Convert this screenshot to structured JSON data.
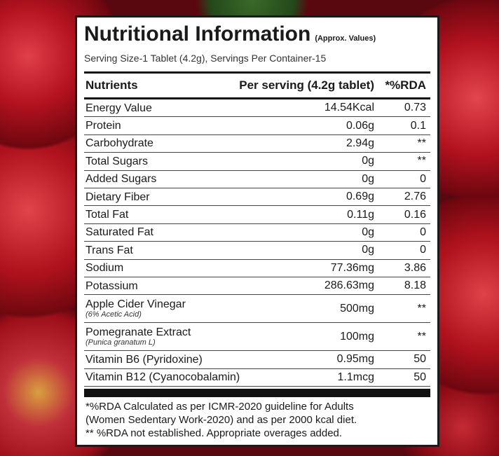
{
  "title": "Nutritional Information",
  "title_note": "(Approx. Values)",
  "serving": "Serving Size-1 Tablet (4.2g), Servings Per Container-15",
  "headers": {
    "nutrients": "Nutrients",
    "per_serving": "Per serving (4.2g tablet)",
    "rda": "*%RDA"
  },
  "rows": [
    {
      "name": "Energy Value",
      "value": "14.54Kcal",
      "rda": "0.73"
    },
    {
      "name": "Protein",
      "value": "0.06g",
      "rda": "0.1"
    },
    {
      "name": "Carbohydrate",
      "value": "2.94g",
      "rda": "**"
    },
    {
      "name": "Total Sugars",
      "value": "0g",
      "rda": "**"
    },
    {
      "name": "Added Sugars",
      "value": "0g",
      "rda": "0"
    },
    {
      "name": "Dietary Fiber",
      "value": "0.69g",
      "rda": "2.76"
    },
    {
      "name": "Total Fat",
      "value": "0.11g",
      "rda": "0.16"
    },
    {
      "name": "Saturated Fat",
      "value": "0g",
      "rda": "0"
    },
    {
      "name": "Trans Fat",
      "value": "0g",
      "rda": "0"
    },
    {
      "name": "Sodium",
      "value": "77.36mg",
      "rda": "3.86"
    },
    {
      "name": "Potassium",
      "value": "286.63mg",
      "rda": "8.18"
    },
    {
      "name": "Apple Cider Vinegar",
      "sub": "(6% Acetic Acid)",
      "value": "500mg",
      "rda": "**"
    },
    {
      "name": "Pomegranate Extract",
      "sub": "(Punica granatum L)",
      "value": "100mg",
      "rda": "**"
    },
    {
      "name": "Vitamin B6 (Pyridoxine)",
      "value": "0.95mg",
      "rda": "50"
    },
    {
      "name": "Vitamin B12 (Cyanocobalamin)",
      "value": "1.1mcg",
      "rda": "50"
    }
  ],
  "footnotes": [
    "*%RDA Calculated as per ICMR-2020 guideline for Adults",
    "(Women Sedentary Work-2020) and as per 2000 kcal diet.",
    "** %RDA not established. Appropriate overages added."
  ]
}
